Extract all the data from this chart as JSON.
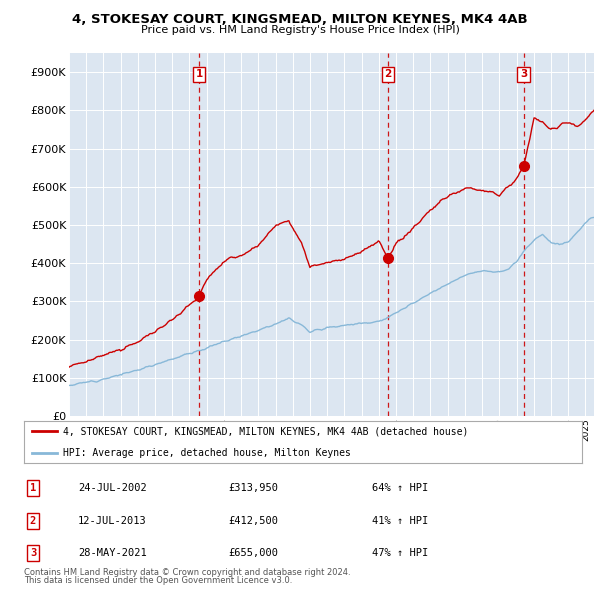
{
  "title": "4, STOKESAY COURT, KINGSMEAD, MILTON KEYNES, MK4 4AB",
  "subtitle": "Price paid vs. HM Land Registry's House Price Index (HPI)",
  "background_color": "#ffffff",
  "plot_bg_color": "#dce6f1",
  "grid_color": "#ffffff",
  "sale_color": "#cc0000",
  "hpi_color": "#88b8d8",
  "dashed_line_color": "#cc0000",
  "legend_sale_label": "4, STOKESAY COURT, KINGSMEAD, MILTON KEYNES, MK4 4AB (detached house)",
  "legend_hpi_label": "HPI: Average price, detached house, Milton Keynes",
  "ylim": [
    0,
    950000
  ],
  "yticks": [
    0,
    100000,
    200000,
    300000,
    400000,
    500000,
    600000,
    700000,
    800000,
    900000
  ],
  "ytick_labels": [
    "£0",
    "£100K",
    "£200K",
    "£300K",
    "£400K",
    "£500K",
    "£600K",
    "£700K",
    "£800K",
    "£900K"
  ],
  "sales": [
    {
      "date": 2002.55,
      "price": 313950,
      "label": "1",
      "date_str": "24-JUL-2002",
      "price_str": "£313,950",
      "pct": "64% ↑ HPI"
    },
    {
      "date": 2013.52,
      "price": 412500,
      "label": "2",
      "date_str": "12-JUL-2013",
      "price_str": "£412,500",
      "pct": "41% ↑ HPI"
    },
    {
      "date": 2021.41,
      "price": 655000,
      "label": "3",
      "date_str": "28-MAY-2021",
      "price_str": "£655,000",
      "pct": "47% ↑ HPI"
    }
  ],
  "footer_lines": [
    "Contains HM Land Registry data © Crown copyright and database right 2024.",
    "This data is licensed under the Open Government Licence v3.0."
  ],
  "xmin": 1995.0,
  "xmax": 2025.5,
  "hpi_kx": [
    1995.0,
    1996.0,
    1997.0,
    1998.0,
    1999.0,
    2000.0,
    2001.0,
    2002.0,
    2003.0,
    2004.0,
    2005.0,
    2006.0,
    2007.0,
    2007.75,
    2008.5,
    2009.0,
    2009.5,
    2010.0,
    2011.0,
    2012.0,
    2013.0,
    2013.5,
    2014.0,
    2015.0,
    2016.0,
    2017.0,
    2018.0,
    2019.0,
    2020.0,
    2020.5,
    2021.0,
    2021.5,
    2022.0,
    2022.5,
    2023.0,
    2023.5,
    2024.0,
    2024.5,
    2025.0,
    2025.5
  ],
  "hpi_ky": [
    80000,
    88000,
    97000,
    108000,
    120000,
    135000,
    150000,
    163000,
    178000,
    195000,
    210000,
    225000,
    242000,
    255000,
    240000,
    220000,
    225000,
    232000,
    238000,
    242000,
    248000,
    255000,
    270000,
    295000,
    320000,
    345000,
    370000,
    380000,
    375000,
    385000,
    405000,
    435000,
    460000,
    475000,
    455000,
    450000,
    455000,
    480000,
    505000,
    520000
  ],
  "red_kx": [
    1995.0,
    1996.0,
    1997.0,
    1998.0,
    1999.0,
    2000.0,
    2001.0,
    2002.0,
    2002.55,
    2003.0,
    2004.0,
    2005.0,
    2006.0,
    2007.0,
    2007.75,
    2008.0,
    2008.5,
    2009.0,
    2009.5,
    2010.0,
    2011.0,
    2012.0,
    2013.0,
    2013.52,
    2014.0,
    2015.0,
    2016.0,
    2017.0,
    2018.0,
    2019.0,
    2020.0,
    2021.0,
    2021.41,
    2021.75,
    2022.0,
    2022.5,
    2023.0,
    2023.5,
    2024.0,
    2024.5,
    2025.0,
    2025.5
  ],
  "red_ky": [
    130000,
    142000,
    158000,
    175000,
    195000,
    220000,
    255000,
    290000,
    313950,
    355000,
    405000,
    420000,
    445000,
    500000,
    512000,
    490000,
    450000,
    390000,
    395000,
    405000,
    410000,
    430000,
    455000,
    412500,
    450000,
    490000,
    540000,
    575000,
    595000,
    590000,
    580000,
    620000,
    655000,
    720000,
    780000,
    770000,
    750000,
    760000,
    770000,
    760000,
    775000,
    800000
  ]
}
